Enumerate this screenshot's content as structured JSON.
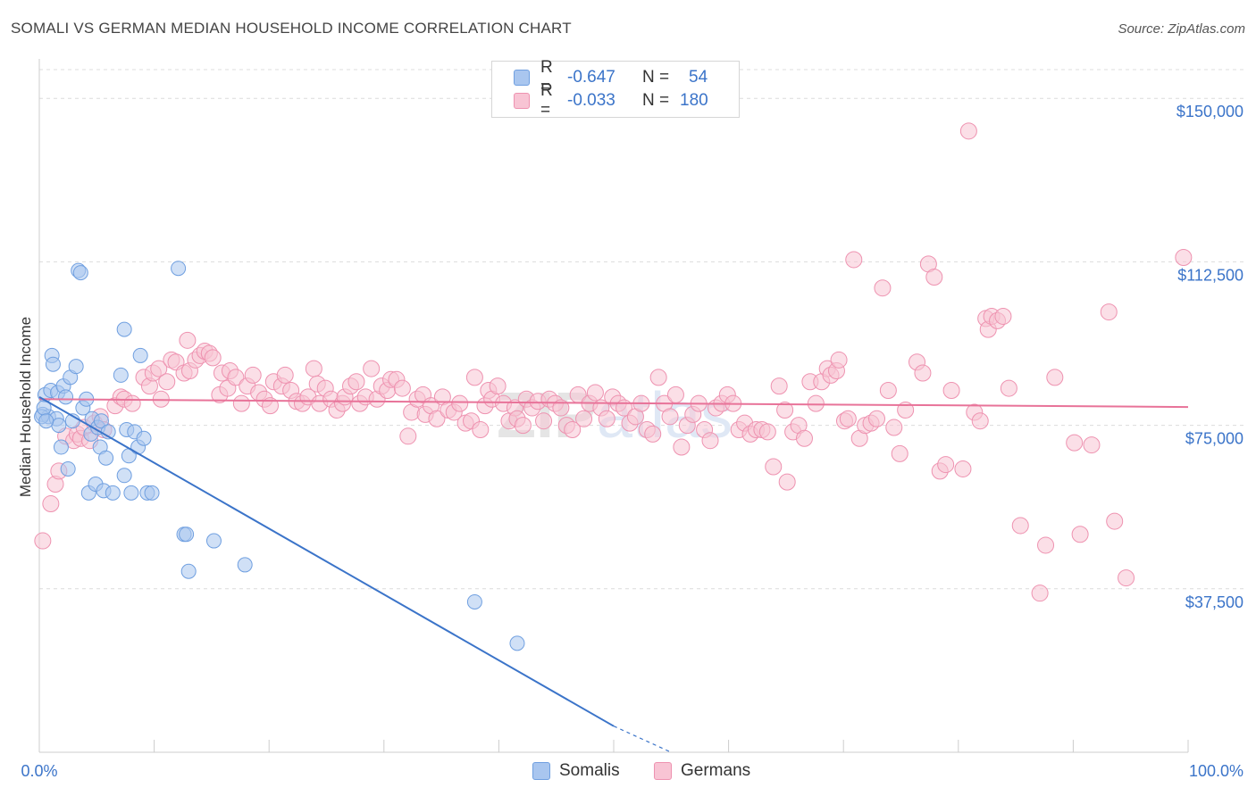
{
  "title": "SOMALI VS GERMAN MEDIAN HOUSEHOLD INCOME CORRELATION CHART",
  "source": "Source: ZipAtlas.com",
  "watermark": "ZIPatlas",
  "legend": {
    "rows": [
      {
        "r_label": "R =",
        "r_value": "-0.647",
        "n_label": "N =",
        "n_value": "54",
        "color": "#a9c6ef",
        "border": "#6f9fe0"
      },
      {
        "r_label": "R =",
        "r_value": "-0.033",
        "n_label": "N =",
        "n_value": "180",
        "color": "#f8c4d4",
        "border": "#ee92b0"
      }
    ]
  },
  "bottom_legend": [
    {
      "label": "Somalis",
      "color": "#a9c6ef",
      "border": "#6f9fe0"
    },
    {
      "label": "Germans",
      "color": "#f8c4d4",
      "border": "#ee92b0"
    }
  ],
  "chart_data": {
    "type": "scatter",
    "title": "SOMALI VS GERMAN MEDIAN HOUSEHOLD INCOME CORRELATION CHART",
    "xlabel": "",
    "ylabel": "Median Household Income",
    "xlim": [
      0,
      100
    ],
    "ylim": [
      0,
      157000
    ],
    "x_tick_labels": [
      "0.0%",
      "100.0%"
    ],
    "y_ticks": [
      37500,
      75000,
      112500,
      150000
    ],
    "y_tick_labels": [
      "$37,500",
      "$75,000",
      "$112,500",
      "$150,000"
    ],
    "grid": true,
    "colors": {
      "somalis": "#3b74c9",
      "germans": "#e87399"
    },
    "series": [
      {
        "name": "Somalis",
        "fill": "#a9c6ef",
        "stroke": "#6f9fe0",
        "trend": {
          "x": [
            0,
            50
          ],
          "y": [
            81500,
            6000
          ],
          "dashed_to": [
            55,
            0
          ]
        },
        "points": [
          [
            0.3,
            77500
          ],
          [
            0.5,
            82000
          ],
          [
            0.8,
            77000
          ],
          [
            1.0,
            83000
          ],
          [
            1.1,
            91000
          ],
          [
            1.2,
            89000
          ],
          [
            1.5,
            76500
          ],
          [
            1.6,
            82500
          ],
          [
            1.7,
            75000
          ],
          [
            1.9,
            70000
          ],
          [
            2.1,
            84000
          ],
          [
            2.3,
            81500
          ],
          [
            2.5,
            65000
          ],
          [
            2.7,
            86000
          ],
          [
            2.9,
            76000
          ],
          [
            3.2,
            88500
          ],
          [
            3.4,
            110500
          ],
          [
            3.6,
            110000
          ],
          [
            3.8,
            79000
          ],
          [
            4.1,
            81000
          ],
          [
            4.3,
            59500
          ],
          [
            4.5,
            73000
          ],
          [
            4.6,
            76500
          ],
          [
            4.9,
            61500
          ],
          [
            5.1,
            74500
          ],
          [
            5.3,
            70000
          ],
          [
            5.4,
            76000
          ],
          [
            5.6,
            60000
          ],
          [
            5.8,
            67500
          ],
          [
            6.0,
            73500
          ],
          [
            6.4,
            59500
          ],
          [
            7.1,
            86500
          ],
          [
            7.4,
            63500
          ],
          [
            7.4,
            97000
          ],
          [
            7.6,
            74000
          ],
          [
            7.8,
            68000
          ],
          [
            8.0,
            59500
          ],
          [
            8.3,
            73500
          ],
          [
            8.6,
            70000
          ],
          [
            8.8,
            91000
          ],
          [
            9.1,
            72000
          ],
          [
            9.4,
            59500
          ],
          [
            9.8,
            59500
          ],
          [
            12.1,
            111000
          ],
          [
            12.6,
            50000
          ],
          [
            12.8,
            50000
          ],
          [
            13.0,
            41500
          ],
          [
            15.2,
            48500
          ],
          [
            17.9,
            43000
          ],
          [
            37.9,
            34500
          ],
          [
            41.6,
            25000
          ],
          [
            0.2,
            77000
          ],
          [
            0.4,
            79000
          ],
          [
            0.6,
            76000
          ]
        ]
      },
      {
        "name": "Germans",
        "fill": "#f8c4d4",
        "stroke": "#ee92b0",
        "trend": {
          "x": [
            0,
            100
          ],
          "y": [
            81000,
            79200
          ]
        },
        "points": [
          [
            0.3,
            48500
          ],
          [
            1.0,
            57000
          ],
          [
            1.4,
            61500
          ],
          [
            1.7,
            64500
          ],
          [
            2.3,
            72500
          ],
          [
            3.0,
            71500
          ],
          [
            3.3,
            73000
          ],
          [
            3.6,
            72000
          ],
          [
            3.9,
            74500
          ],
          [
            4.4,
            71500
          ],
          [
            4.8,
            75500
          ],
          [
            5.3,
            77000
          ],
          [
            5.6,
            74000
          ],
          [
            6.6,
            79500
          ],
          [
            7.1,
            81500
          ],
          [
            7.4,
            81000
          ],
          [
            8.1,
            80000
          ],
          [
            9.1,
            86000
          ],
          [
            9.6,
            84000
          ],
          [
            9.9,
            87000
          ],
          [
            10.4,
            88000
          ],
          [
            10.6,
            81000
          ],
          [
            11.1,
            85000
          ],
          [
            11.5,
            90000
          ],
          [
            11.9,
            89500
          ],
          [
            12.6,
            87000
          ],
          [
            12.9,
            94500
          ],
          [
            13.1,
            87500
          ],
          [
            13.6,
            90000
          ],
          [
            14.0,
            91000
          ],
          [
            14.4,
            92000
          ],
          [
            14.8,
            91500
          ],
          [
            15.1,
            90500
          ],
          [
            15.7,
            82000
          ],
          [
            15.9,
            87000
          ],
          [
            16.4,
            83500
          ],
          [
            16.6,
            87500
          ],
          [
            17.1,
            86000
          ],
          [
            17.6,
            80000
          ],
          [
            18.1,
            84000
          ],
          [
            18.6,
            86500
          ],
          [
            19.1,
            82500
          ],
          [
            19.6,
            81000
          ],
          [
            20.1,
            79500
          ],
          [
            20.4,
            85000
          ],
          [
            21.1,
            84000
          ],
          [
            21.4,
            86500
          ],
          [
            21.9,
            83000
          ],
          [
            22.4,
            80500
          ],
          [
            22.9,
            80000
          ],
          [
            23.4,
            81500
          ],
          [
            23.9,
            88000
          ],
          [
            24.2,
            84500
          ],
          [
            24.4,
            80000
          ],
          [
            24.9,
            83500
          ],
          [
            25.4,
            81000
          ],
          [
            25.9,
            78500
          ],
          [
            26.4,
            80000
          ],
          [
            26.6,
            81500
          ],
          [
            27.1,
            84000
          ],
          [
            27.6,
            85000
          ],
          [
            27.9,
            80000
          ],
          [
            28.4,
            81500
          ],
          [
            28.9,
            88000
          ],
          [
            29.4,
            81000
          ],
          [
            29.8,
            84000
          ],
          [
            30.3,
            83000
          ],
          [
            30.6,
            85500
          ],
          [
            31.1,
            85500
          ],
          [
            31.6,
            83500
          ],
          [
            32.1,
            72500
          ],
          [
            32.4,
            78000
          ],
          [
            32.9,
            81000
          ],
          [
            33.4,
            82000
          ],
          [
            33.6,
            77500
          ],
          [
            34.1,
            79500
          ],
          [
            34.6,
            76500
          ],
          [
            35.1,
            81500
          ],
          [
            35.6,
            78500
          ],
          [
            36.1,
            78000
          ],
          [
            36.6,
            80000
          ],
          [
            37.1,
            75500
          ],
          [
            37.6,
            76000
          ],
          [
            37.9,
            86000
          ],
          [
            38.4,
            74000
          ],
          [
            38.8,
            79500
          ],
          [
            39.1,
            83000
          ],
          [
            39.4,
            81000
          ],
          [
            39.9,
            84000
          ],
          [
            40.4,
            80000
          ],
          [
            40.9,
            76000
          ],
          [
            41.4,
            79000
          ],
          [
            41.6,
            76500
          ],
          [
            42.1,
            75000
          ],
          [
            42.4,
            81000
          ],
          [
            42.9,
            79000
          ],
          [
            43.4,
            80500
          ],
          [
            43.9,
            76000
          ],
          [
            44.4,
            81000
          ],
          [
            44.9,
            80000
          ],
          [
            45.4,
            79000
          ],
          [
            45.9,
            75000
          ],
          [
            46.4,
            74000
          ],
          [
            46.9,
            82000
          ],
          [
            47.4,
            76500
          ],
          [
            47.9,
            80000
          ],
          [
            48.4,
            82500
          ],
          [
            48.9,
            79000
          ],
          [
            49.4,
            76500
          ],
          [
            49.9,
            81500
          ],
          [
            50.4,
            80000
          ],
          [
            50.9,
            79000
          ],
          [
            51.4,
            75500
          ],
          [
            51.9,
            77000
          ],
          [
            52.4,
            80000
          ],
          [
            52.9,
            74000
          ],
          [
            53.4,
            73000
          ],
          [
            53.9,
            86000
          ],
          [
            54.4,
            80000
          ],
          [
            54.9,
            77000
          ],
          [
            55.4,
            82000
          ],
          [
            55.9,
            70000
          ],
          [
            56.4,
            75000
          ],
          [
            56.9,
            77500
          ],
          [
            57.4,
            80000
          ],
          [
            57.9,
            74000
          ],
          [
            58.4,
            71500
          ],
          [
            58.9,
            79000
          ],
          [
            59.4,
            80000
          ],
          [
            59.9,
            82000
          ],
          [
            60.4,
            80000
          ],
          [
            60.9,
            74000
          ],
          [
            61.4,
            75500
          ],
          [
            61.9,
            73000
          ],
          [
            62.4,
            74000
          ],
          [
            62.9,
            74000
          ],
          [
            63.4,
            73500
          ],
          [
            63.9,
            65500
          ],
          [
            64.4,
            84000
          ],
          [
            64.9,
            78500
          ],
          [
            65.1,
            62000
          ],
          [
            65.6,
            73500
          ],
          [
            66.1,
            75000
          ],
          [
            66.6,
            72000
          ],
          [
            67.1,
            85000
          ],
          [
            67.6,
            80000
          ],
          [
            68.1,
            85000
          ],
          [
            68.6,
            88000
          ],
          [
            68.9,
            86500
          ],
          [
            69.4,
            87500
          ],
          [
            69.6,
            90000
          ],
          [
            70.1,
            76000
          ],
          [
            70.4,
            76500
          ],
          [
            70.9,
            113000
          ],
          [
            71.4,
            72000
          ],
          [
            71.9,
            75000
          ],
          [
            72.4,
            75500
          ],
          [
            72.9,
            76500
          ],
          [
            73.4,
            106500
          ],
          [
            73.9,
            83000
          ],
          [
            74.4,
            74500
          ],
          [
            74.9,
            68500
          ],
          [
            75.4,
            78500
          ],
          [
            76.4,
            89500
          ],
          [
            76.9,
            87000
          ],
          [
            77.4,
            112000
          ],
          [
            77.9,
            109000
          ],
          [
            78.4,
            64500
          ],
          [
            78.9,
            66000
          ],
          [
            79.4,
            83000
          ],
          [
            80.4,
            65000
          ],
          [
            81.4,
            78000
          ],
          [
            81.9,
            76000
          ],
          [
            82.4,
            99500
          ],
          [
            82.6,
            97000
          ],
          [
            82.9,
            100000
          ],
          [
            83.4,
            99000
          ],
          [
            83.9,
            100000
          ],
          [
            84.4,
            83500
          ],
          [
            85.4,
            52000
          ],
          [
            87.1,
            36500
          ],
          [
            87.6,
            47500
          ],
          [
            88.4,
            86000
          ],
          [
            90.1,
            71000
          ],
          [
            90.6,
            50000
          ],
          [
            91.6,
            70500
          ],
          [
            93.1,
            101000
          ],
          [
            93.6,
            53000
          ],
          [
            94.6,
            40000
          ],
          [
            99.6,
            113500
          ],
          [
            80.9,
            142500
          ]
        ]
      }
    ]
  }
}
